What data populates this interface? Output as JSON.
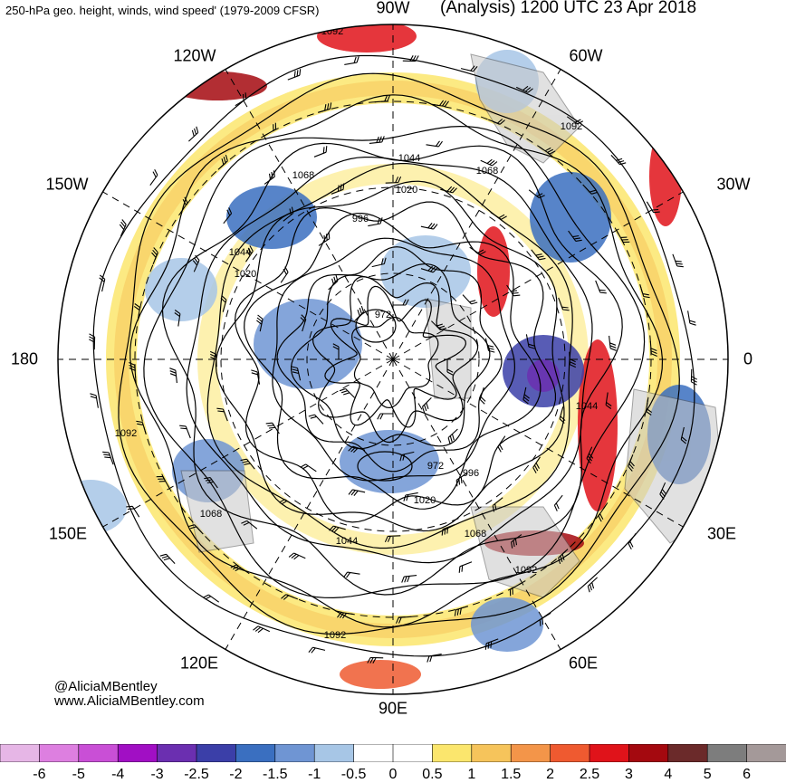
{
  "header": {
    "title_left": "250-hPa geo. height, winds, wind speed' (1979-2009 CFSR)",
    "title_right": "(Analysis) 1200 UTC 23 Apr 2018"
  },
  "longitude_labels": [
    "90W",
    "60W",
    "30W",
    "0",
    "30E",
    "60E",
    "90E",
    "120E",
    "150E",
    "180",
    "150W",
    "120W"
  ],
  "contour_labels": [
    "1092",
    "1092",
    "1068",
    "1044",
    "1020",
    "996",
    "1068",
    "1044",
    "1020",
    "972",
    "1092",
    "1044",
    "972",
    "996",
    "1020",
    "1068",
    "1068",
    "1044",
    "1092",
    "1092"
  ],
  "credits": {
    "twitter": "@AliciaMBentley",
    "website": "www.AliciaMBentley.com"
  },
  "colorbar": {
    "labels": [
      "-6",
      "-5",
      "-4",
      "-3",
      "-2.5",
      "-2",
      "-1.5",
      "-1",
      "-0.5",
      "0",
      "0.5",
      "1",
      "1.5",
      "2",
      "2.5",
      "3",
      "4",
      "5",
      "6"
    ],
    "colors": [
      "#e6b6e6",
      "#dd7fe0",
      "#c94fd6",
      "#a10fc4",
      "#6b2fb0",
      "#3b3fa8",
      "#3a6fc0",
      "#6f95d3",
      "#a7c6e6",
      "#ffffff",
      "#ffffff",
      "#fbe66d",
      "#f6c45b",
      "#f39549",
      "#ef5a30",
      "#e0131a",
      "#a4090f",
      "#6b2a2a",
      "#7d7d7d",
      "#a49999"
    ]
  }
}
